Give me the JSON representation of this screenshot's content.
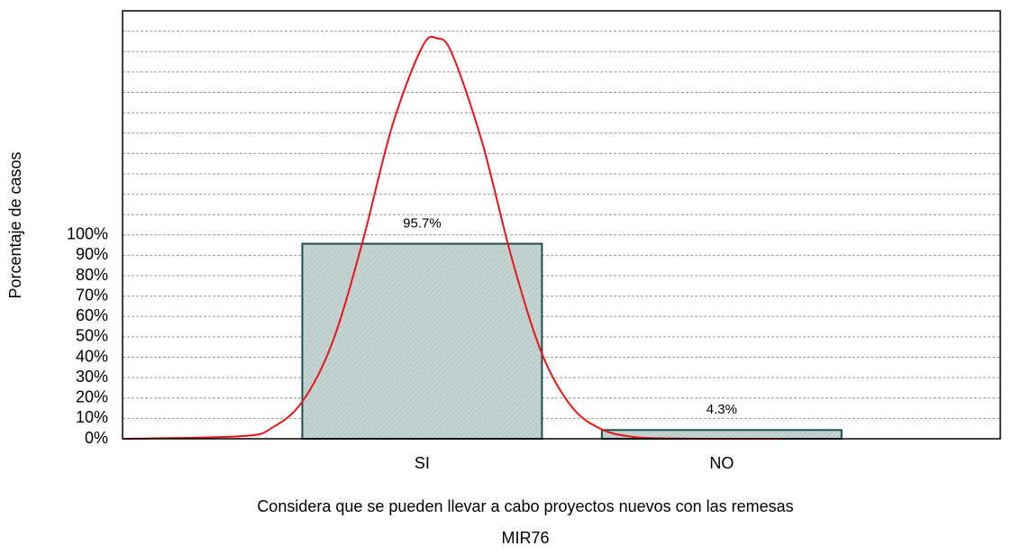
{
  "chart_data": {
    "type": "bar",
    "ylabel": "Porcentaje de casos",
    "xlabel": "Considera que se pueden llevar a cabo proyectos nuevos con las remesas",
    "subtitle": "MIR76",
    "categories": [
      "SI",
      "NO"
    ],
    "values": [
      95.7,
      4.3
    ],
    "value_labels": [
      "95.7%",
      "4.3%"
    ],
    "color": "#c3d3cf",
    "edge_color": "#1e4d4d",
    "xlim": [
      -1,
      1.93
    ],
    "ylim": [
      0,
      210
    ],
    "yticks": [
      {
        "value": 0,
        "label": "0%"
      },
      {
        "value": 10,
        "label": "10%"
      },
      {
        "value": 20,
        "label": "20%"
      },
      {
        "value": 30,
        "label": "30%"
      },
      {
        "value": 40,
        "label": "40%"
      },
      {
        "value": 50,
        "label": "50%"
      },
      {
        "value": 60,
        "label": "60%"
      },
      {
        "value": 70,
        "label": "70%"
      },
      {
        "value": 80,
        "label": "80%"
      },
      {
        "value": 90,
        "label": "90%"
      },
      {
        "value": 100,
        "label": "100%"
      }
    ],
    "ygrid": [
      10,
      20,
      30,
      40,
      50,
      60,
      70,
      80,
      90,
      100,
      110,
      120,
      130,
      140,
      150,
      160,
      170,
      180,
      190,
      200
    ],
    "grid": true,
    "curve": {
      "color": "#e8141a",
      "x": [
        -1.0,
        -0.6,
        -0.5,
        -0.4,
        -0.3,
        -0.2,
        -0.1,
        0,
        0.05,
        0.1,
        0.2,
        0.3,
        0.4,
        0.5,
        0.6,
        0.7,
        0.8,
        1.0,
        1.2
      ],
      "values": [
        0,
        1.3,
        5.5,
        18.2,
        47.1,
        96.0,
        153.4,
        192.2,
        196.5,
        188.9,
        145.7,
        88.2,
        41.8,
        15.6,
        4.6,
        1.0,
        0.2,
        0,
        0
      ]
    }
  }
}
